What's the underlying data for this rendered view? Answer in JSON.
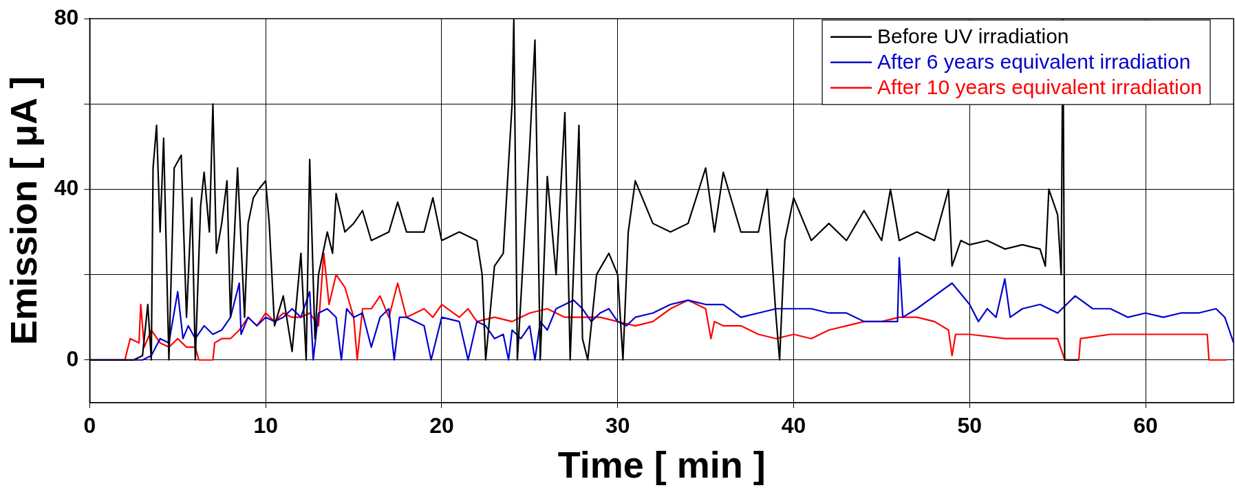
{
  "chart_data": {
    "type": "line",
    "xlabel": "Time [ min ]",
    "ylabel": "Emission [ μA ]",
    "xlim": [
      0,
      65
    ],
    "xticks": [
      0,
      10,
      20,
      30,
      40,
      50,
      60
    ],
    "ylim": [
      -10,
      80
    ],
    "yticks": [
      0,
      {
        "value": 20,
        "label": null
      },
      40,
      {
        "value": 60,
        "label": null
      },
      80
    ],
    "grid": true,
    "legend": "top right",
    "marker": "none",
    "line_style": "solid",
    "series": [
      {
        "name": "Before UV irradiation",
        "color": "#000000",
        "x": [
          0,
          2.5,
          3,
          3.3,
          3.5,
          3.6,
          3.8,
          4,
          4.2,
          4.5,
          4.8,
          5.2,
          5.5,
          5.8,
          6,
          6.3,
          6.5,
          6.8,
          7,
          7.2,
          7.5,
          7.8,
          8,
          8.4,
          8.8,
          9,
          9.3,
          9.6,
          10,
          10.2,
          10.5,
          11,
          11.5,
          12,
          12.3,
          12.5,
          12.8,
          13,
          13.5,
          13.8,
          14,
          14.5,
          15,
          15.5,
          16,
          17,
          17.5,
          18,
          19,
          19.5,
          20,
          21,
          22,
          22.3,
          22.5,
          23,
          23.5,
          24,
          24.1,
          24.3,
          25,
          25.3,
          25.6,
          26,
          26.5,
          27,
          27.3,
          27.8,
          28,
          28.3,
          28.8,
          29.5,
          30,
          30.3,
          30.6,
          31,
          32,
          33,
          34,
          35,
          35.5,
          36,
          37,
          38,
          38.5,
          39,
          39.2,
          39.5,
          40,
          41,
          42,
          43,
          44,
          45,
          45.5,
          46,
          47,
          48,
          48.8,
          49,
          49.5,
          50,
          51,
          52,
          53,
          54,
          54.3,
          54.5,
          55,
          55.2,
          55.3,
          55.4,
          56.2
        ],
        "values": [
          0,
          0,
          1,
          13,
          0,
          45,
          55,
          30,
          52,
          0,
          45,
          48,
          10,
          38,
          0,
          36,
          44,
          30,
          60,
          25,
          32,
          42,
          10,
          45,
          10,
          32,
          38,
          40,
          42,
          32,
          8,
          15,
          2,
          25,
          0,
          47,
          5,
          20,
          30,
          25,
          39,
          30,
          32,
          35,
          28,
          30,
          37,
          30,
          30,
          38,
          28,
          30,
          28,
          20,
          0,
          22,
          25,
          60,
          80,
          0,
          50,
          75,
          0,
          43,
          20,
          58,
          0,
          55,
          5,
          0,
          20,
          25,
          20,
          0,
          30,
          42,
          32,
          30,
          32,
          45,
          30,
          44,
          30,
          30,
          40,
          10,
          0,
          28,
          38,
          28,
          32,
          28,
          35,
          28,
          40,
          28,
          30,
          28,
          40,
          22,
          28,
          27,
          28,
          26,
          27,
          26,
          22,
          40,
          34,
          20,
          80,
          0,
          0
        ]
      },
      {
        "name": "After 6 years equivalent irradiation",
        "color": "#0000cc",
        "x": [
          0,
          3,
          3.5,
          4,
          4.5,
          5,
          5.3,
          5.6,
          6,
          6.5,
          7,
          7.5,
          8,
          8.5,
          8.6,
          9,
          9.5,
          10,
          10.5,
          11,
          11.5,
          12,
          12.5,
          12.7,
          13,
          13.5,
          14,
          14.3,
          14.6,
          15,
          15.5,
          16,
          16.5,
          17,
          17.3,
          17.6,
          18,
          19,
          19.4,
          20,
          21,
          21.5,
          22,
          22.5,
          23,
          23.5,
          23.8,
          24,
          24.5,
          25,
          25.3,
          25.6,
          26,
          26.5,
          27,
          27.5,
          28,
          28.5,
          29,
          29.5,
          30,
          30.5,
          31,
          32,
          33,
          34,
          35,
          36,
          37,
          38,
          39,
          40,
          41,
          42,
          43,
          44,
          45,
          45.9,
          46,
          46.2,
          47,
          48,
          49,
          50,
          50.5,
          51,
          51.5,
          52,
          52.3,
          53,
          54,
          55,
          56,
          57,
          58,
          59,
          60,
          61,
          62,
          63,
          64,
          64.5,
          65
        ],
        "values": [
          0,
          0,
          1,
          5,
          4,
          16,
          5,
          8,
          5,
          8,
          6,
          7,
          10,
          18,
          6,
          10,
          8,
          10,
          9,
          10,
          12,
          10,
          16,
          0,
          11,
          12,
          10,
          0,
          12,
          10,
          11,
          3,
          10,
          12,
          0,
          10,
          10,
          8,
          0,
          10,
          9,
          0,
          9,
          8,
          5,
          6,
          0,
          7,
          5,
          8,
          0,
          9,
          7,
          12,
          13,
          14,
          12,
          9,
          11,
          12,
          9,
          8,
          10,
          11,
          13,
          14,
          13,
          13,
          10,
          11,
          12,
          12,
          12,
          11,
          11,
          9,
          9,
          9,
          24,
          10,
          12,
          15,
          18,
          13,
          9,
          12,
          10,
          19,
          10,
          12,
          13,
          11,
          15,
          12,
          12,
          10,
          11,
          10,
          11,
          11,
          12,
          10,
          4
        ]
      },
      {
        "name": "After 10 years equivalent irradiation",
        "color": "#ff0000",
        "x": [
          0,
          2,
          2.3,
          2.8,
          2.9,
          3.1,
          3.5,
          4,
          4.5,
          5,
          5.5,
          6,
          6.2,
          7,
          7.1,
          7.5,
          8,
          8.5,
          9,
          9.5,
          10,
          10.5,
          11,
          11.5,
          12,
          12.5,
          13,
          13.3,
          13.6,
          14,
          14.5,
          15,
          15.2,
          15.5,
          16,
          16.5,
          17,
          17.5,
          18,
          19,
          19.5,
          20,
          21,
          21.5,
          22,
          23,
          24,
          25,
          26,
          27,
          28,
          29,
          30,
          31,
          32,
          33,
          34,
          35,
          35.3,
          35.5,
          36,
          37,
          38,
          39,
          40,
          41,
          42,
          43,
          44,
          45,
          46,
          47,
          48,
          48.8,
          49,
          49.2,
          50,
          52,
          54,
          55,
          55.4,
          56.2,
          56.3,
          58,
          60,
          62,
          63.5,
          63.6,
          64.6
        ],
        "values": [
          0,
          0,
          5,
          4,
          13,
          3,
          7,
          4,
          3,
          5,
          3,
          3,
          0,
          0,
          4,
          5,
          5,
          7,
          10,
          8,
          11,
          9,
          11,
          10,
          10,
          11,
          8,
          25,
          13,
          20,
          17,
          10,
          0,
          12,
          12,
          15,
          10,
          18,
          10,
          12,
          10,
          13,
          10,
          12,
          9,
          10,
          9,
          11,
          12,
          10,
          10,
          10,
          9,
          8,
          9,
          12,
          14,
          12,
          5,
          9,
          8,
          8,
          6,
          5,
          6,
          5,
          7,
          8,
          9,
          9,
          10,
          10,
          9,
          7,
          1,
          6,
          6,
          5,
          5,
          5,
          0,
          0,
          5,
          6,
          6,
          6,
          6,
          0,
          0
        ]
      }
    ]
  }
}
